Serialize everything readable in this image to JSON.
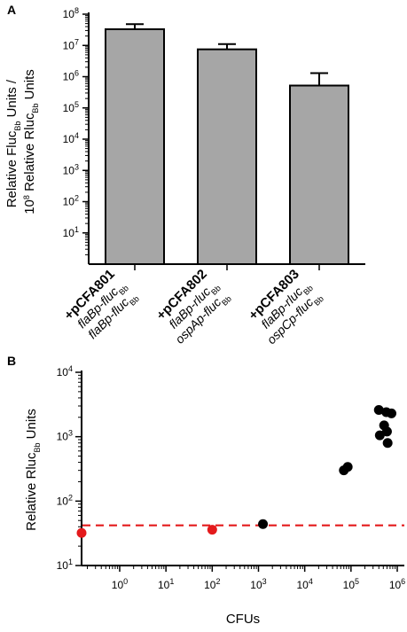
{
  "chart_data": [
    {
      "panel": "A",
      "type": "bar",
      "ylabel_line1": "Relative Fluc",
      "ylabel_line1_sub": "Bb",
      "ylabel_line1_end": " Units /",
      "ylabel_line2_exp": "8",
      "ylabel_line2": " Relative Rluc",
      "ylabel_line2_sub": "Bb",
      "ylabel_line2_end": " Units",
      "y_scale": "log",
      "ylim": [
        1,
        100000000
      ],
      "y_ticks": [
        {
          "value": 10,
          "exp": "1"
        },
        {
          "value": 100,
          "exp": "2"
        },
        {
          "value": 1000,
          "exp": "3"
        },
        {
          "value": 10000,
          "exp": "4"
        },
        {
          "value": 100000,
          "exp": "5"
        },
        {
          "value": 1000000,
          "exp": "6"
        },
        {
          "value": 10000000,
          "exp": "7"
        },
        {
          "value": 100000000,
          "exp": "8"
        }
      ],
      "tick_base": "10",
      "categories": [
        {
          "name": "+pCFA801",
          "line2": "flaBp-fluc",
          "line2_sub": "Bb",
          "line3": "flaBp-fluc",
          "line3_sub": "Bb"
        },
        {
          "name": "+pCFA802",
          "line2": "flaBp-rluc",
          "line2_sub": "Bb",
          "line3": "ospAp-fluc",
          "line3_sub": "Bb"
        },
        {
          "name": "+pCFA803",
          "line2": "flaBp-rluc",
          "line2_sub": "Bb",
          "line3": "ospCp-fluc",
          "line3_sub": "Bb"
        }
      ],
      "values": [
        33000000,
        7500000,
        520000
      ],
      "error_upper": [
        48000000,
        11000000,
        1300000
      ],
      "bar_color": "#a6a6a6",
      "grid": false
    },
    {
      "panel": "B",
      "type": "scatter",
      "xlabel": "CFUs",
      "ylabel": "Relative Rluc",
      "ylabel_sub": "Bb",
      "ylabel_end": " Units",
      "x_scale": "log",
      "y_scale": "log",
      "xlim": [
        0.15,
        1000000
      ],
      "ylim": [
        10,
        10000
      ],
      "x_ticks": [
        {
          "value": 1,
          "exp": "0"
        },
        {
          "value": 10,
          "exp": "1"
        },
        {
          "value": 100,
          "exp": "2"
        },
        {
          "value": 1000,
          "exp": "3"
        },
        {
          "value": 10000,
          "exp": "4"
        },
        {
          "value": 100000,
          "exp": "5"
        },
        {
          "value": 1000000,
          "exp": "6"
        }
      ],
      "y_ticks": [
        {
          "value": 10,
          "exp": "1"
        },
        {
          "value": 100,
          "exp": "2"
        },
        {
          "value": 1000,
          "exp": "3"
        },
        {
          "value": 10000,
          "exp": "4"
        }
      ],
      "tick_base": "10",
      "series": [
        {
          "color": "#e41a1c",
          "points": [
            [
              0.15,
              32
            ],
            [
              100,
              36
            ]
          ]
        },
        {
          "color": "#000000",
          "points": [
            [
              1250,
              44
            ],
            [
              70000,
              300
            ],
            [
              85000,
              340
            ],
            [
              400000,
              2600
            ],
            [
              580000,
              2400
            ],
            [
              750000,
              2300
            ],
            [
              420000,
              1050
            ],
            [
              520000,
              1500
            ],
            [
              600000,
              1200
            ],
            [
              620000,
              800
            ]
          ]
        }
      ],
      "threshold": {
        "value": 42,
        "color": "#e41a1c",
        "style": "dashed"
      },
      "grid": false
    }
  ]
}
